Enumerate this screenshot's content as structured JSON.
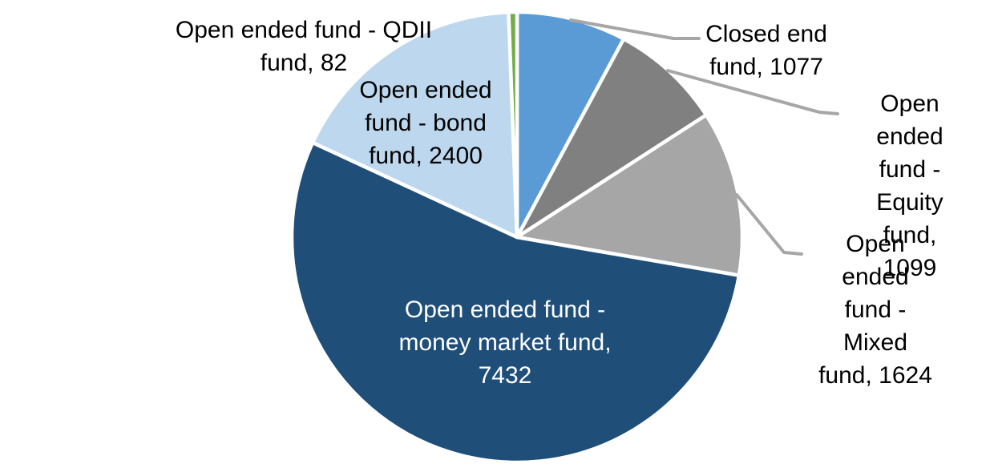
{
  "chart_data": {
    "type": "pie",
    "title": "",
    "legend_position": "none",
    "label_format": "category name, value",
    "background_color": "#FFFFFF",
    "leader_line_color": "#A6A6A6",
    "start_angle_deg": 0,
    "direction": "clockwise",
    "slices": [
      {
        "name": "Closed end fund",
        "value": 1077,
        "color": "#5B9BD5",
        "label_text": "Closed end\nfund, 1077",
        "label_color": "#000000"
      },
      {
        "name": "Open ended fund - Equity fund",
        "value": 1099,
        "color": "#808080",
        "label_text": "Open ended\nfund - Equity\nfund, 1099",
        "label_color": "#000000"
      },
      {
        "name": "Open ended fund - Mixed fund",
        "value": 1624,
        "color": "#A6A6A6",
        "label_text": "Open ended\nfund - Mixed\nfund, 1624",
        "label_color": "#000000"
      },
      {
        "name": "Open ended fund - money market fund",
        "value": 7432,
        "color": "#1F4E79",
        "label_text": "Open ended fund -\nmoney market fund,\n7432",
        "label_color": "#FFFFFF"
      },
      {
        "name": "Open ended fund - bond fund",
        "value": 2400,
        "color": "#BDD7EE",
        "label_text": "Open ended\nfund - bond\nfund, 2400",
        "label_color": "#000000"
      },
      {
        "name": "Open ended fund - QDII fund",
        "value": 82,
        "color": "#70AD47",
        "label_text": "Open ended fund - QDII\nfund, 82",
        "label_color": "#000000"
      }
    ]
  }
}
